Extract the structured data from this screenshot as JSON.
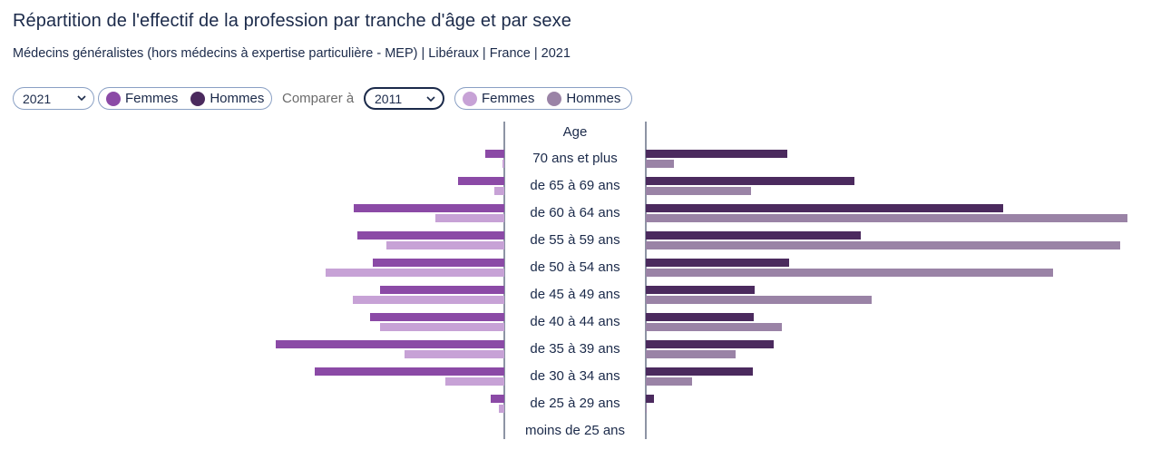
{
  "header": {
    "title": "Répartition de l'effectif de la profession par tranche d'âge et par sexe",
    "subtitle": "Médecins généralistes (hors médecins à expertise particulière - MEP) | Libéraux | France | 2021"
  },
  "controls": {
    "year_select": "2021",
    "compare_label": "Comparer à",
    "compare_select": "2011",
    "legend_main": {
      "femmes": "Femmes",
      "hommes": "Hommes"
    },
    "legend_compare": {
      "femmes": "Femmes",
      "hommes": "Hommes"
    }
  },
  "colors": {
    "femmes_2021": "#8b4aa6",
    "hommes_2021": "#4b2a5e",
    "femmes_2011": "#c7a2d6",
    "hommes_2011": "#9a83a6",
    "axis": "#1b2a4a"
  },
  "icons": {
    "select_chevron": "chevron-down-icon"
  },
  "chart_data": {
    "type": "bar",
    "orientation": "horizontal-pyramid",
    "axis_label": "Age",
    "categories": [
      "70 ans et plus",
      "de 65 à 69 ans",
      "de 60 à 64 ans",
      "de 55 à 59 ans",
      "de 50 à 54 ans",
      "de 45 à 49 ans",
      "de 40 à 44 ans",
      "de 35 à 39 ans",
      "de 30 à 34 ans",
      "de 25 à 29 ans",
      "moins de 25 ans"
    ],
    "series": [
      {
        "name": "Femmes",
        "year": "2021",
        "side": "left",
        "values": [
          21,
          51,
          166,
          162,
          145,
          137,
          148,
          252,
          209,
          15,
          0
        ]
      },
      {
        "name": "Femmes",
        "year": "2011",
        "side": "left",
        "values": [
          2,
          11,
          76,
          130,
          197,
          167,
          137,
          110,
          65,
          6,
          0
        ]
      },
      {
        "name": "Hommes",
        "year": "2021",
        "side": "right",
        "values": [
          156,
          230,
          394,
          237,
          158,
          120,
          119,
          141,
          118,
          9,
          0
        ]
      },
      {
        "name": "Hommes",
        "year": "2011",
        "side": "right",
        "values": [
          31,
          116,
          531,
          523,
          449,
          249,
          150,
          99,
          51,
          1,
          0
        ]
      }
    ]
  }
}
